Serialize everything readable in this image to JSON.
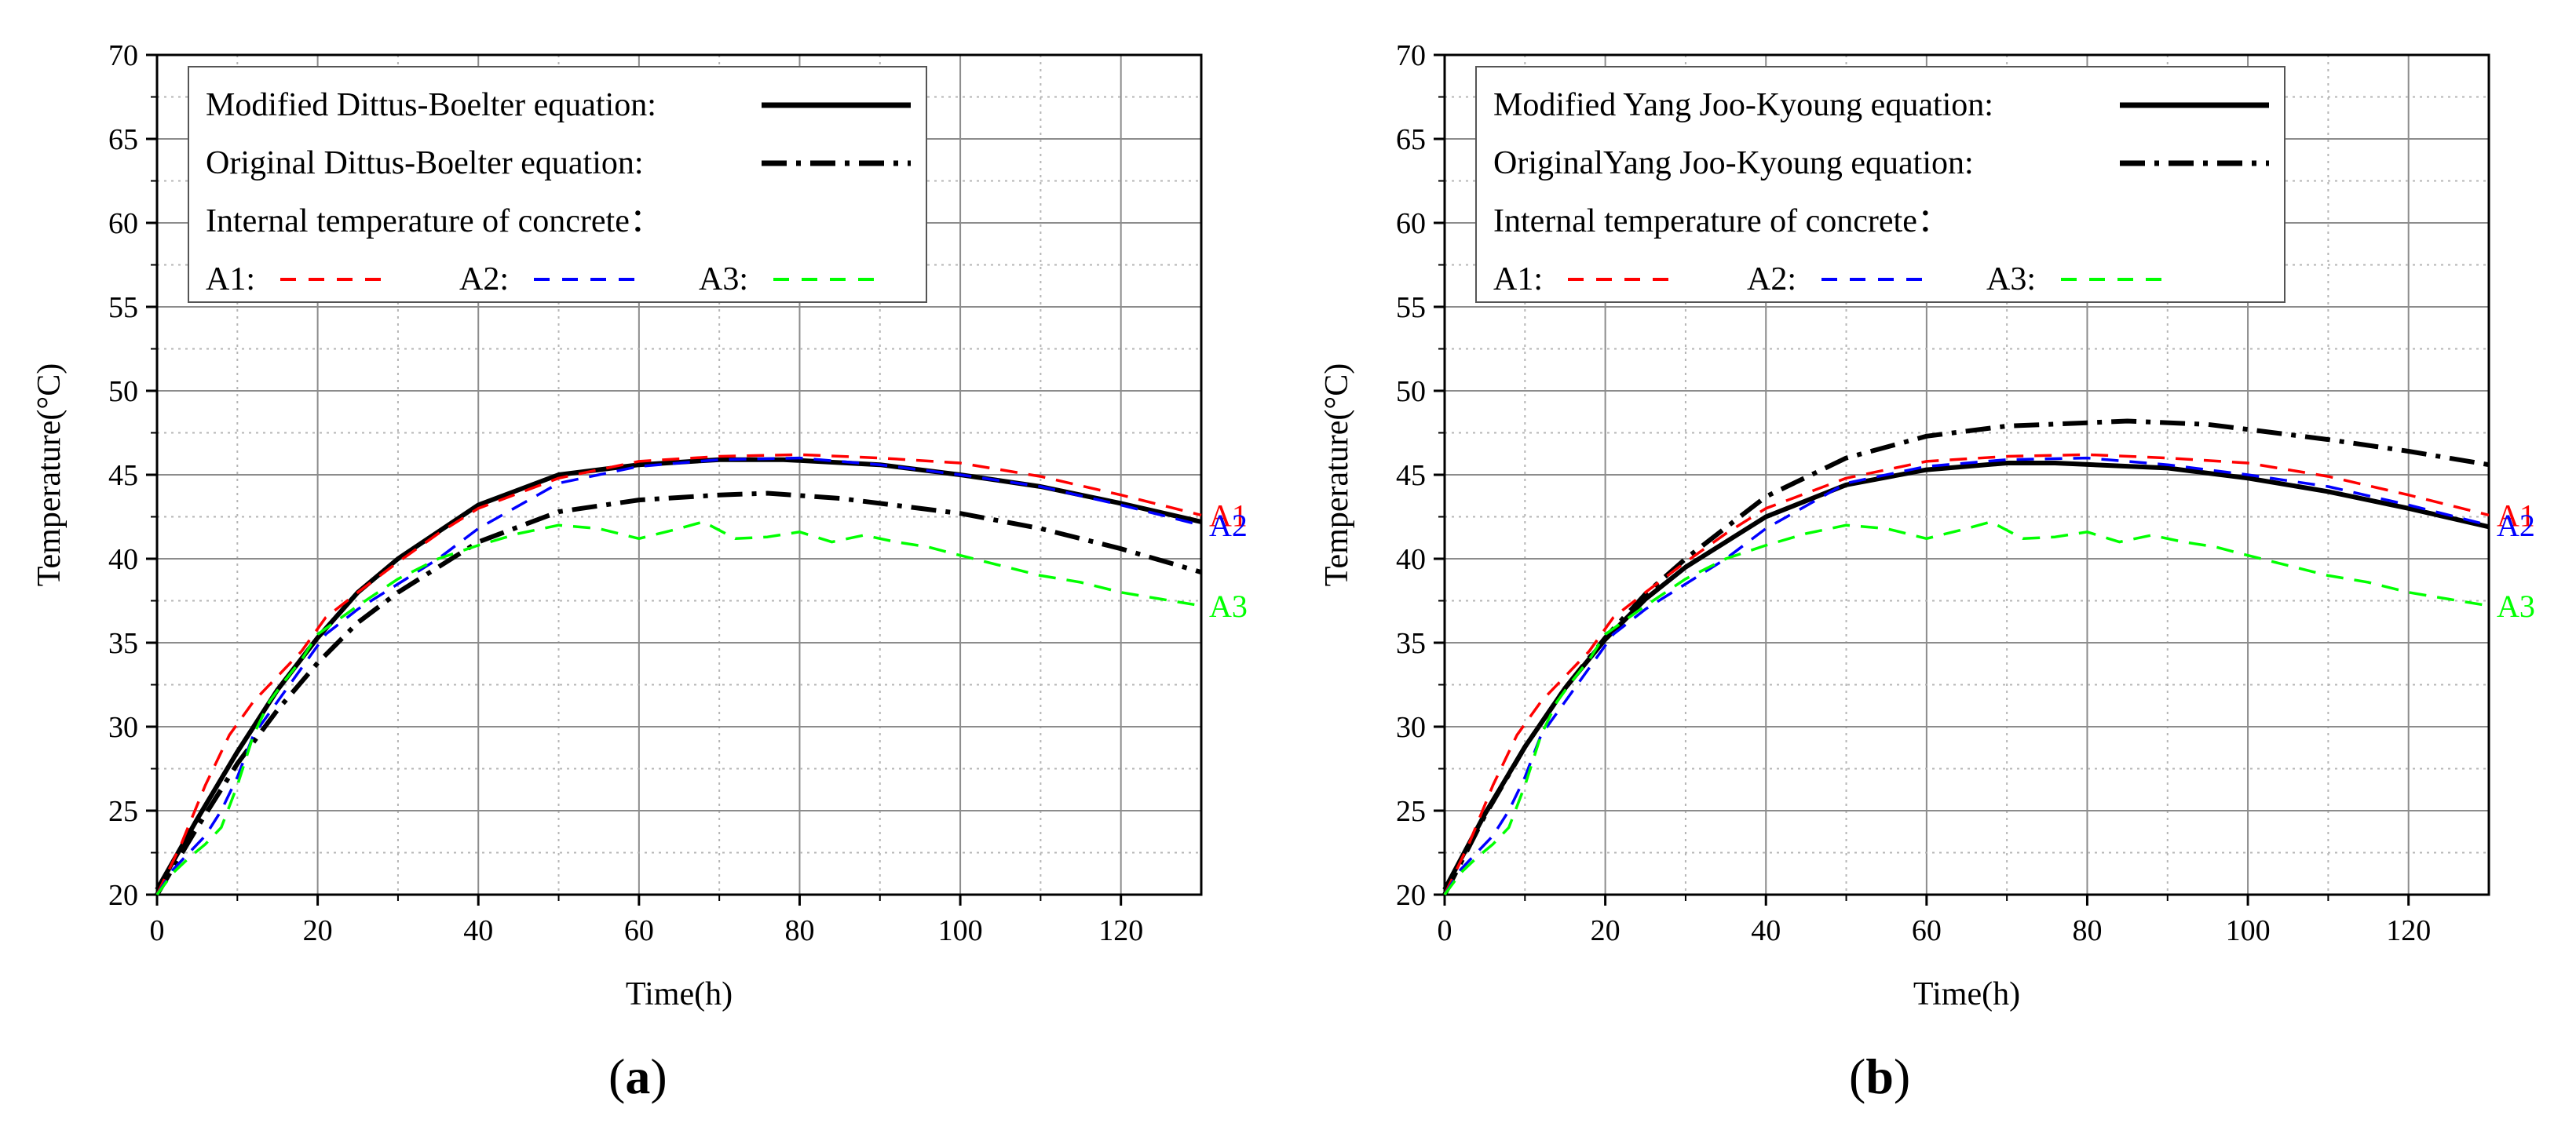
{
  "chart_data": [
    {
      "type": "line",
      "panel_label": "a",
      "xlabel": "Time(h)",
      "ylabel": "Temperature(°C)",
      "xlim": [
        0,
        130
      ],
      "ylim": [
        20,
        70
      ],
      "xticks": [
        0,
        20,
        40,
        60,
        80,
        100,
        120
      ],
      "yticks": [
        20,
        25,
        30,
        35,
        40,
        45,
        50,
        55,
        60,
        65,
        70
      ],
      "grid": true,
      "legend": {
        "location": "top-left",
        "lines": [
          {
            "label": "Modified Dittus-Boelter equation:",
            "series": "modified"
          },
          {
            "label": "Original Dittus-Boelter equation:",
            "series": "original"
          },
          {
            "label": "Internal temperature of concrete："
          }
        ],
        "inline": [
          {
            "label": "A1:",
            "series": "A1"
          },
          {
            "label": "A2:",
            "series": "A2"
          },
          {
            "label": "A3:",
            "series": "A3"
          }
        ]
      },
      "series": [
        {
          "key": "modified",
          "name": "Modified Dittus-Boelter equation",
          "style": "solid",
          "color": "#000000",
          "x": [
            0,
            5,
            10,
            15,
            20,
            25,
            30,
            40,
            50,
            60,
            70,
            78,
            90,
            100,
            110,
            120,
            130
          ],
          "y": [
            20.3,
            24.5,
            28.5,
            32.2,
            35.3,
            38.0,
            40.0,
            43.2,
            45.0,
            45.6,
            45.9,
            45.9,
            45.6,
            45.0,
            44.3,
            43.3,
            42.2
          ]
        },
        {
          "key": "original",
          "name": "Original Dittus-Boelter equation",
          "style": "dashdot",
          "color": "#000000",
          "x": [
            0,
            5,
            10,
            15,
            20,
            25,
            30,
            40,
            50,
            60,
            70,
            76,
            85,
            100,
            110,
            120,
            130
          ],
          "y": [
            20.0,
            24.0,
            27.8,
            31.0,
            33.8,
            36.2,
            38.0,
            41.0,
            42.8,
            43.5,
            43.8,
            43.9,
            43.6,
            42.7,
            41.8,
            40.6,
            39.2
          ]
        },
        {
          "key": "A1",
          "name": "A1",
          "style": "dashed",
          "color": "#ff0000",
          "x": [
            0,
            3,
            6,
            9,
            12,
            15,
            18,
            21,
            25,
            30,
            35,
            40,
            50,
            60,
            70,
            80,
            90,
            100,
            110,
            120,
            130
          ],
          "y": [
            20.0,
            23.0,
            26.5,
            29.5,
            31.5,
            33.0,
            34.5,
            36.5,
            38.0,
            39.8,
            41.5,
            43.0,
            44.8,
            45.8,
            46.1,
            46.2,
            46.0,
            45.7,
            44.9,
            43.8,
            42.6
          ],
          "end_label": "A1"
        },
        {
          "key": "A2",
          "name": "A2",
          "style": "dashed",
          "color": "#0000ff",
          "x": [
            0,
            2,
            4,
            6,
            8,
            10,
            12,
            15,
            18,
            21,
            25,
            30,
            35,
            40,
            50,
            60,
            70,
            80,
            90,
            100,
            110,
            120,
            130
          ],
          "y": [
            20.0,
            21.5,
            22.5,
            23.5,
            25.0,
            27.0,
            29.5,
            31.5,
            33.5,
            35.5,
            37.0,
            38.5,
            40.0,
            41.8,
            44.5,
            45.5,
            45.9,
            46.0,
            45.6,
            45.0,
            44.3,
            43.2,
            42.0
          ],
          "end_label": "A2"
        },
        {
          "key": "A3",
          "name": "A3",
          "style": "dashed",
          "color": "#00ff00",
          "x": [
            0,
            2,
            4,
            6,
            8,
            10,
            12,
            14,
            16,
            18,
            20,
            25,
            30,
            35,
            40,
            45,
            50,
            55,
            60,
            65,
            68,
            72,
            76,
            80,
            84,
            88,
            92,
            96,
            100,
            105,
            110,
            115,
            120,
            125,
            130
          ],
          "y": [
            20.0,
            21.3,
            22.2,
            23.0,
            24.0,
            26.5,
            29.5,
            31.5,
            32.8,
            34.0,
            35.5,
            37.2,
            38.8,
            40.0,
            40.8,
            41.5,
            42.0,
            41.8,
            41.2,
            41.8,
            42.2,
            41.2,
            41.3,
            41.6,
            41.0,
            41.4,
            41.0,
            40.7,
            40.2,
            39.6,
            39.0,
            38.6,
            38.0,
            37.6,
            37.2
          ],
          "end_label": "A3"
        }
      ]
    },
    {
      "type": "line",
      "panel_label": "b",
      "xlabel": "Time(h)",
      "ylabel": "Temperature(°C)",
      "xlim": [
        0,
        130
      ],
      "ylim": [
        20,
        70
      ],
      "xticks": [
        0,
        20,
        40,
        60,
        80,
        100,
        120
      ],
      "yticks": [
        20,
        25,
        30,
        35,
        40,
        45,
        50,
        55,
        60,
        65,
        70
      ],
      "grid": true,
      "legend": {
        "location": "top-left",
        "lines": [
          {
            "label": "Modified Yang Joo-Kyoung equation:",
            "series": "modified"
          },
          {
            "label": "OriginalYang Joo-Kyoung equation:",
            "series": "original"
          },
          {
            "label": "Internal temperature of concrete："
          }
        ],
        "inline": [
          {
            "label": "A1:",
            "series": "A1"
          },
          {
            "label": "A2:",
            "series": "A2"
          },
          {
            "label": "A3:",
            "series": "A3"
          }
        ]
      },
      "series": [
        {
          "key": "modified",
          "name": "Modified Yang Joo-Kyoung equation",
          "style": "solid",
          "color": "#000000",
          "x": [
            0,
            5,
            10,
            15,
            20,
            25,
            30,
            40,
            50,
            60,
            70,
            76,
            90,
            100,
            110,
            120,
            130
          ],
          "y": [
            20.3,
            24.8,
            28.8,
            32.3,
            35.2,
            37.6,
            39.5,
            42.5,
            44.4,
            45.3,
            45.7,
            45.7,
            45.4,
            44.8,
            44.0,
            43.0,
            41.9
          ]
        },
        {
          "key": "original",
          "name": "OriginalYang Joo-Kyoung equation",
          "style": "dashdot",
          "color": "#000000",
          "x": [
            0,
            5,
            10,
            15,
            20,
            25,
            30,
            40,
            50,
            60,
            70,
            80,
            85,
            95,
            100,
            110,
            120,
            130
          ],
          "y": [
            20.0,
            24.7,
            28.8,
            32.3,
            35.3,
            37.9,
            40.0,
            43.7,
            46.0,
            47.3,
            47.9,
            48.1,
            48.2,
            48.0,
            47.7,
            47.1,
            46.4,
            45.6
          ]
        },
        {
          "key": "A1",
          "name": "A1",
          "style": "dashed",
          "color": "#ff0000",
          "x": [
            0,
            3,
            6,
            9,
            12,
            15,
            18,
            21,
            25,
            30,
            35,
            40,
            50,
            60,
            70,
            80,
            90,
            100,
            110,
            120,
            130
          ],
          "y": [
            20.0,
            23.0,
            26.5,
            29.5,
            31.5,
            33.0,
            34.5,
            36.5,
            38.0,
            39.8,
            41.5,
            43.0,
            44.8,
            45.8,
            46.1,
            46.2,
            46.0,
            45.7,
            44.9,
            43.8,
            42.6
          ],
          "end_label": "A1"
        },
        {
          "key": "A2",
          "name": "A2",
          "style": "dashed",
          "color": "#0000ff",
          "x": [
            0,
            2,
            4,
            6,
            8,
            10,
            12,
            15,
            18,
            21,
            25,
            30,
            35,
            40,
            50,
            60,
            70,
            80,
            90,
            100,
            110,
            120,
            130
          ],
          "y": [
            20.0,
            21.5,
            22.5,
            23.5,
            25.0,
            27.0,
            29.5,
            31.5,
            33.5,
            35.5,
            37.0,
            38.5,
            40.0,
            41.8,
            44.5,
            45.5,
            45.9,
            46.0,
            45.6,
            45.0,
            44.3,
            43.2,
            42.0
          ],
          "end_label": "A2"
        },
        {
          "key": "A3",
          "name": "A3",
          "style": "dashed",
          "color": "#00ff00",
          "x": [
            0,
            2,
            4,
            6,
            8,
            10,
            12,
            14,
            16,
            18,
            20,
            25,
            30,
            35,
            40,
            45,
            50,
            55,
            60,
            65,
            68,
            72,
            76,
            80,
            84,
            88,
            92,
            96,
            100,
            105,
            110,
            115,
            120,
            125,
            130
          ],
          "y": [
            20.0,
            21.3,
            22.2,
            23.0,
            24.0,
            26.5,
            29.5,
            31.5,
            32.8,
            34.0,
            35.5,
            37.2,
            38.8,
            40.0,
            40.8,
            41.5,
            42.0,
            41.8,
            41.2,
            41.8,
            42.2,
            41.2,
            41.3,
            41.6,
            41.0,
            41.4,
            41.0,
            40.7,
            40.2,
            39.6,
            39.0,
            38.6,
            38.0,
            37.6,
            37.2
          ],
          "end_label": "A3"
        }
      ]
    }
  ]
}
